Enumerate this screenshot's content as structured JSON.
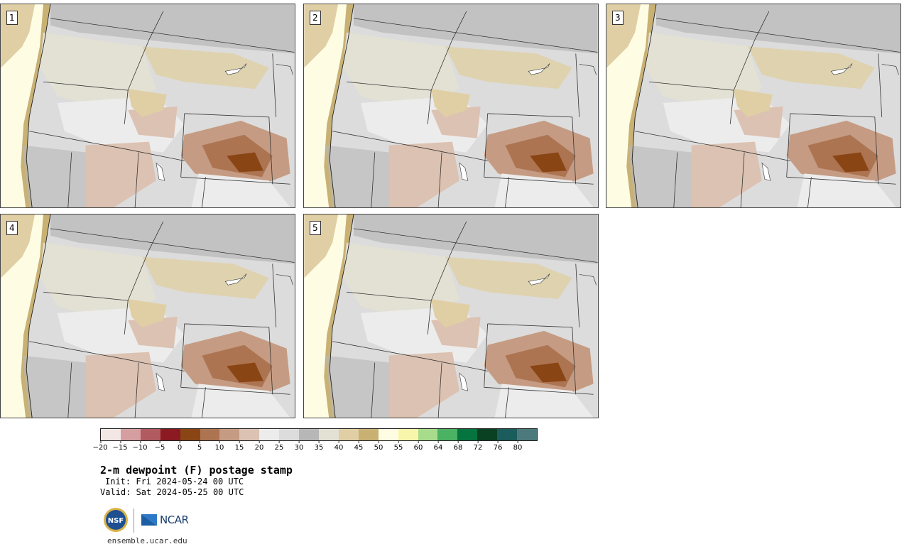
{
  "panels": [
    {
      "label": "1"
    },
    {
      "label": "2"
    },
    {
      "label": "3"
    },
    {
      "label": "4"
    },
    {
      "label": "5"
    }
  ],
  "colorbar": {
    "colors": [
      "#f2e7e4",
      "#d59fa1",
      "#b15a60",
      "#8b1a22",
      "#8a4514",
      "#ad7452",
      "#c59c83",
      "#dcc2b2",
      "#ececec",
      "#dcdcdc",
      "#b7b7b7",
      "#e3e1d4",
      "#e0cfa4",
      "#c9b174",
      "#fefde4",
      "#f8f6aa",
      "#a8dc8c",
      "#4bb264",
      "#06743e",
      "#0a4122",
      "#1b5c5c",
      "#4c7a7c"
    ],
    "tick_labels": [
      "−20",
      "−15",
      "−10",
      "−5",
      "0",
      "5",
      "10",
      "15",
      "20",
      "25",
      "30",
      "35",
      "40",
      "45",
      "50",
      "55",
      "60",
      "64",
      "68",
      "72",
      "76",
      "80"
    ]
  },
  "title": "2-m dewpoint (F) postage stamp",
  "init": "Init: Fri 2024-05-24 00 UTC",
  "valid": "Valid: Sat 2024-05-25 00 UTC",
  "logos": {
    "nsf": "NSF",
    "ncar": "NCAR"
  },
  "site": "ensemble.ucar.edu"
}
